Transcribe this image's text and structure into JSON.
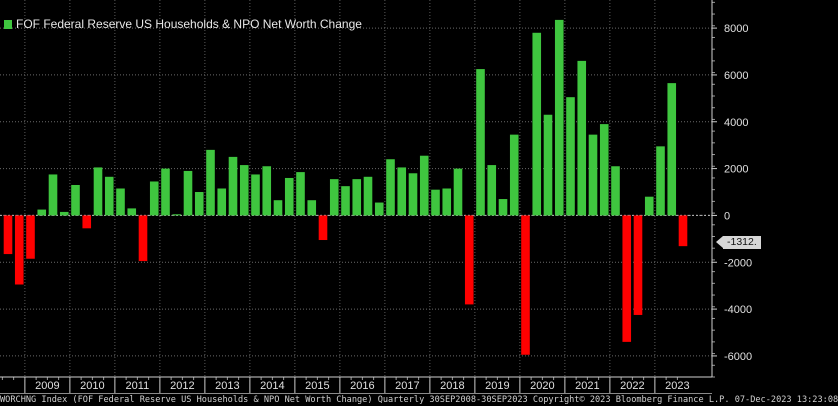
{
  "chart_data": {
    "type": "bar",
    "title": "FOF Federal Reserve US Households & NPO Net Worth Change",
    "xlabel": "",
    "ylabel": "",
    "ylim": [
      -6900,
      9200
    ],
    "yticks": [
      -6000,
      -4000,
      -2000,
      0,
      2000,
      4000,
      6000,
      8000
    ],
    "year_labels": [
      "2009",
      "2010",
      "2011",
      "2012",
      "2013",
      "2014",
      "2015",
      "2016",
      "2017",
      "2018",
      "2019",
      "2020",
      "2021",
      "2022",
      "2023"
    ],
    "start_quarter": "2008Q3",
    "end_quarter": "2023Q3",
    "values": [
      -1650,
      -2950,
      -1850,
      250,
      1750,
      150,
      1300,
      -550,
      2050,
      1650,
      1150,
      300,
      -1950,
      1450,
      2000,
      50,
      1900,
      1000,
      2800,
      1150,
      2500,
      2150,
      1750,
      2100,
      650,
      1600,
      1850,
      650,
      -1050,
      1550,
      1250,
      1550,
      1650,
      550,
      2400,
      2050,
      1800,
      2550,
      1100,
      1150,
      2000,
      -3800,
      6250,
      2150,
      700,
      3450,
      -5950,
      7800,
      4300,
      8350,
      5050,
      6600,
      3450,
      3900,
      2100,
      -5400,
      -4250,
      800,
      2950,
      5650,
      -1312
    ],
    "positive_color": "#3fc63f",
    "negative_color": "#ff0000",
    "last_value_label": "-1312.",
    "legend_position": "top-left",
    "grid": true
  },
  "legend": {
    "label": "FOF Federal Reserve US Households & NPO Net Worth Change"
  },
  "footer": {
    "text": "WORCHNG Index (FOF Federal Reserve US Households & NPO Net Worth Change) Quarterly 30SEP2008-30SEP2023 Copyright© 2023 Bloomberg Finance L.P. 07-Dec-2023 13:23:08"
  }
}
